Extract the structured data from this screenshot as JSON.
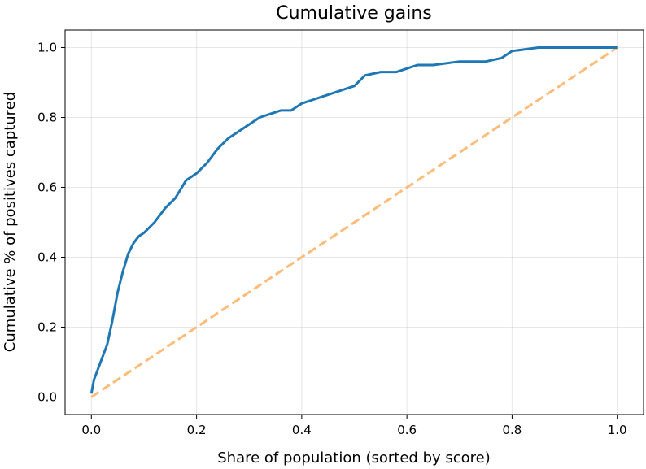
{
  "chart_data": {
    "type": "line",
    "title": "Cumulative gains",
    "xlabel": "Share of population (sorted by score)",
    "ylabel": "Cumulative % of positives captured",
    "xlim": [
      -0.05,
      1.05
    ],
    "ylim": [
      -0.05,
      1.05
    ],
    "xticks": [
      0.0,
      0.2,
      0.4,
      0.6,
      0.8,
      1.0
    ],
    "yticks": [
      0.0,
      0.2,
      0.4,
      0.6,
      0.8,
      1.0
    ],
    "xtick_labels": [
      "0.0",
      "0.2",
      "0.4",
      "0.6",
      "0.8",
      "1.0"
    ],
    "ytick_labels": [
      "0.0",
      "0.2",
      "0.4",
      "0.6",
      "0.8",
      "1.0"
    ],
    "grid": true,
    "series": [
      {
        "style": "solid",
        "color": "#1f77b4",
        "x": [
          0.0,
          0.005,
          0.01,
          0.02,
          0.03,
          0.04,
          0.05,
          0.06,
          0.07,
          0.08,
          0.09,
          0.1,
          0.12,
          0.14,
          0.16,
          0.18,
          0.2,
          0.22,
          0.24,
          0.26,
          0.28,
          0.3,
          0.32,
          0.34,
          0.36,
          0.38,
          0.4,
          0.42,
          0.44,
          0.46,
          0.48,
          0.5,
          0.52,
          0.55,
          0.58,
          0.6,
          0.62,
          0.65,
          0.7,
          0.75,
          0.78,
          0.8,
          0.85,
          0.9,
          0.95,
          1.0
        ],
        "y": [
          0.01,
          0.05,
          0.07,
          0.11,
          0.15,
          0.22,
          0.3,
          0.36,
          0.41,
          0.44,
          0.46,
          0.47,
          0.5,
          0.54,
          0.57,
          0.62,
          0.64,
          0.67,
          0.71,
          0.74,
          0.76,
          0.78,
          0.8,
          0.81,
          0.82,
          0.82,
          0.84,
          0.85,
          0.86,
          0.87,
          0.88,
          0.89,
          0.92,
          0.93,
          0.93,
          0.94,
          0.95,
          0.95,
          0.96,
          0.96,
          0.97,
          0.99,
          1.0,
          1.0,
          1.0,
          1.0
        ]
      },
      {
        "style": "dashed",
        "color": "#ffbb78",
        "x": [
          0.0,
          1.0
        ],
        "y": [
          0.0,
          1.0
        ]
      }
    ]
  }
}
